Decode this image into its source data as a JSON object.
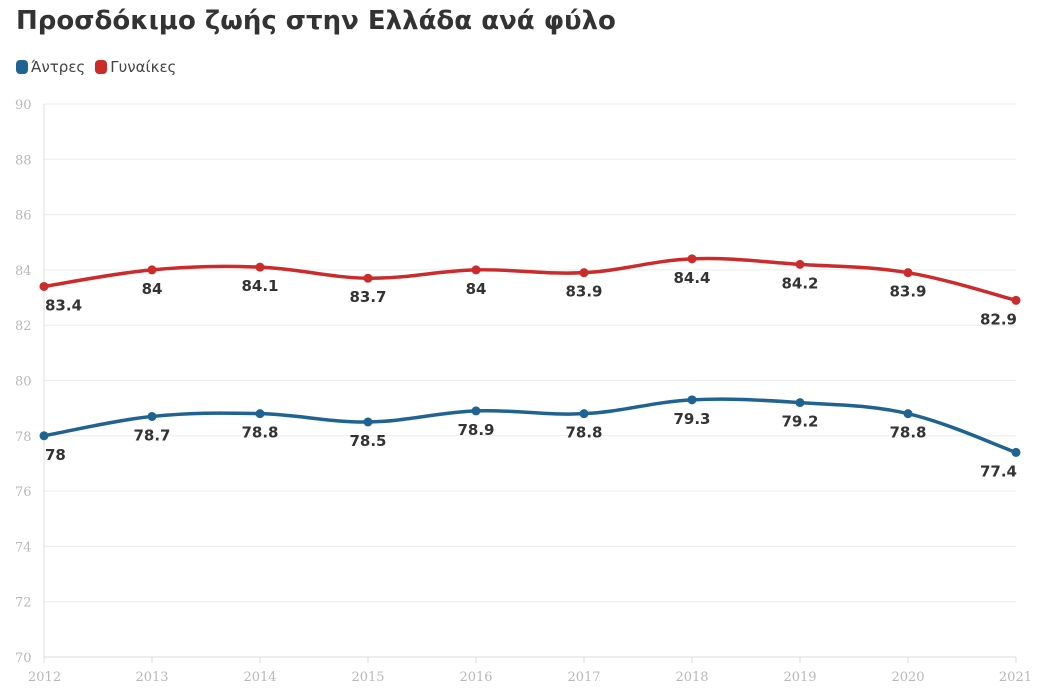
{
  "chart_data": {
    "type": "line",
    "title": "Προσδόκιμο ζωής στην Ελλάδα ανά φύλο",
    "xlabel": "",
    "ylabel": "",
    "x": [
      2012,
      2013,
      2014,
      2015,
      2016,
      2017,
      2018,
      2019,
      2020,
      2021
    ],
    "ylim": [
      70,
      90
    ],
    "yticks": [
      70,
      72,
      74,
      76,
      78,
      80,
      82,
      84,
      86,
      88,
      90
    ],
    "grid": true,
    "legend_position": "top-left",
    "series": [
      {
        "name": "Άντρες",
        "color": "#1f6391",
        "values": [
          78,
          78.7,
          78.8,
          78.5,
          78.9,
          78.8,
          79.3,
          79.2,
          78.8,
          77.4
        ]
      },
      {
        "name": "Γυναίκες",
        "color": "#cc2b2b",
        "values": [
          83.4,
          84,
          84.1,
          83.7,
          84,
          83.9,
          84.4,
          84.2,
          83.9,
          82.9
        ]
      }
    ]
  }
}
